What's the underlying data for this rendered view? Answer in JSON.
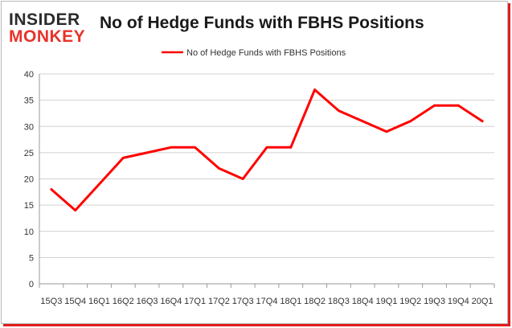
{
  "logo": {
    "line1": "INSIDER",
    "line2": "MONKEY"
  },
  "chart_data": {
    "type": "line",
    "title": "No of Hedge Funds with FBHS Positions",
    "xlabel": "",
    "ylabel": "",
    "categories": [
      "15Q3",
      "15Q4",
      "16Q1",
      "16Q2",
      "16Q3",
      "16Q4",
      "17Q1",
      "17Q2",
      "17Q3",
      "17Q4",
      "18Q1",
      "18Q2",
      "18Q3",
      "18Q4",
      "19Q1",
      "19Q2",
      "19Q3",
      "19Q4",
      "20Q1"
    ],
    "x_tick_labels": [
      "15Q3",
      "15Q4",
      "16Q1",
      "16Q2",
      "16Q3",
      "16Q4",
      "17Q1",
      "17Q2",
      "17Q3",
      "17Q4",
      "18Q1",
      "18Q2",
      "18Q3",
      "18Q4",
      "19Q1",
      "19Q2",
      "19Q3",
      "19Q4",
      "20Q1"
    ],
    "series": [
      {
        "name": "No of Hedge Funds with FBHS Positions",
        "color": "#ff0000",
        "values": [
          18,
          14,
          19,
          24,
          25,
          26,
          26,
          22,
          20,
          26,
          26,
          37,
          33,
          31,
          29,
          31,
          34,
          34,
          31
        ]
      }
    ],
    "ylim": [
      0,
      40
    ],
    "yticks": [
      0,
      5,
      10,
      15,
      20,
      25,
      30,
      35,
      40
    ],
    "grid": true,
    "legend": "top-center"
  }
}
